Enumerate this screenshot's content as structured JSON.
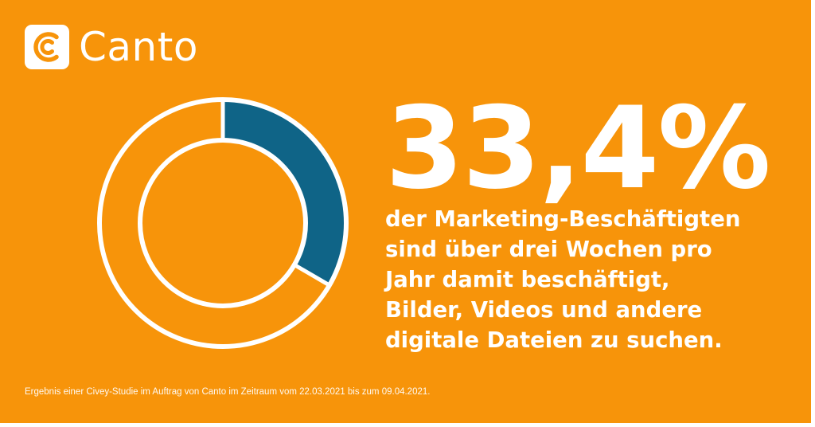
{
  "brand": {
    "name": "Canto",
    "background_color": "#f7940a",
    "accent_color": "#0f6487",
    "text_color": "#ffffff"
  },
  "headline": "33,4%",
  "description_lines": [
    "der Marketing-Beschäftigten",
    "sind über drei Wochen pro",
    "Jahr damit beschäftigt,",
    "Bilder, Videos und andere",
    "digitale Dateien zu suchen."
  ],
  "footnote": "Ergebnis einer Civey-Studie im Auftrag von Canto im Zeitraum vom 22.03.2021 bis zum 09.04.2021.",
  "chart_data": {
    "type": "pie",
    "style": "donut",
    "values": [
      33.4,
      66.6
    ],
    "colors": [
      "#0f6487",
      "#f7940a"
    ],
    "title": "",
    "legend": "none"
  }
}
